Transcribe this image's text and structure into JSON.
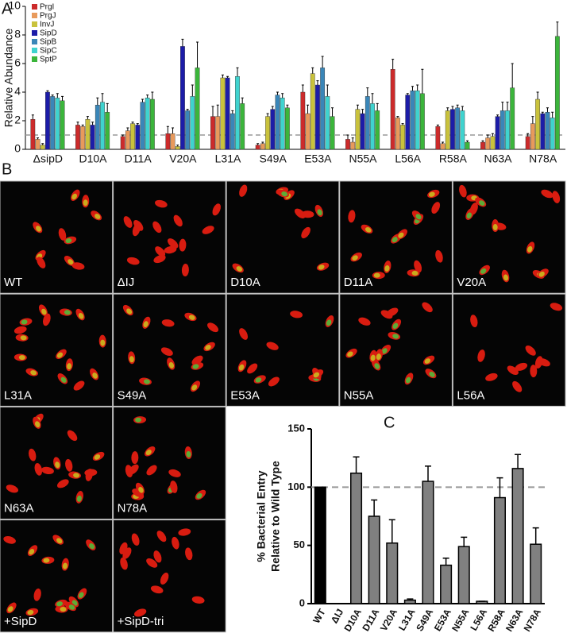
{
  "chart_data": [
    {
      "type": "grouped_bar",
      "panel_label": "A",
      "ylabel": "Relative Abundance",
      "categories": [
        "ΔsipD",
        "D10A",
        "D11A",
        "V20A",
        "L31A",
        "S49A",
        "E53A",
        "N55A",
        "L56A",
        "R58A",
        "N63A",
        "N78A"
      ],
      "ylim": [
        0,
        10
      ],
      "yticks": [
        0,
        2,
        4,
        6,
        8,
        10
      ],
      "reference_line": 1,
      "series": [
        {
          "name": "PrgI",
          "color": "#cc2b2b",
          "values": [
            2.1,
            1.7,
            0.9,
            1.1,
            2.3,
            0.3,
            4.0,
            0.7,
            5.6,
            1.6,
            0.5,
            0.9
          ],
          "errors": [
            0.3,
            0.2,
            0.1,
            0.5,
            0.7,
            0.1,
            0.5,
            0.3,
            0.7,
            0.1,
            0.1,
            0.2
          ]
        },
        {
          "name": "PrgJ",
          "color": "#e89a5c",
          "values": [
            0.7,
            1.6,
            1.3,
            1.1,
            2.3,
            0.4,
            2.5,
            0.5,
            2.2,
            0.4,
            0.8,
            1.8
          ],
          "errors": [
            0.1,
            0.1,
            0.2,
            0.4,
            0.8,
            0.1,
            0.6,
            0.3,
            0.1,
            0.1,
            0.2,
            0.5
          ]
        },
        {
          "name": "InvJ",
          "color": "#c9c23c",
          "values": [
            0.3,
            2.1,
            1.8,
            0.2,
            5.0,
            2.3,
            5.3,
            2.8,
            1.7,
            2.7,
            0.9,
            3.5
          ],
          "errors": [
            0.1,
            0.2,
            0.1,
            0.1,
            0.2,
            0.2,
            0.4,
            0.3,
            0.1,
            0.2,
            0.2,
            0.5
          ]
        },
        {
          "name": "SipD",
          "color": "#1c1ca8",
          "values": [
            4.0,
            1.7,
            1.7,
            7.2,
            5.0,
            2.8,
            4.5,
            2.5,
            3.8,
            2.8,
            2.3,
            2.5
          ],
          "errors": [
            0.1,
            0.2,
            0.1,
            0.5,
            0.1,
            0.2,
            0.3,
            0.3,
            0.1,
            0.2,
            0.1,
            0.1
          ]
        },
        {
          "name": "SipB",
          "color": "#3a86b8",
          "values": [
            3.7,
            3.1,
            3.3,
            2.7,
            2.5,
            3.8,
            5.7,
            3.7,
            4.1,
            2.9,
            2.7,
            2.6
          ],
          "errors": [
            0.1,
            0.5,
            0.2,
            0.1,
            0.2,
            0.2,
            0.8,
            0.6,
            0.3,
            0.2,
            0.6,
            0.3
          ]
        },
        {
          "name": "SipC",
          "color": "#3fd3cf",
          "values": [
            3.6,
            3.3,
            3.6,
            3.7,
            5.1,
            3.6,
            3.7,
            3.2,
            4.1,
            2.7,
            2.7,
            2.2
          ],
          "errors": [
            0.3,
            0.6,
            0.2,
            0.8,
            0.6,
            0.3,
            0.8,
            0.7,
            0.4,
            0.3,
            0.6,
            0.4
          ]
        },
        {
          "name": "SptP",
          "color": "#3bb53b",
          "values": [
            3.4,
            2.6,
            3.5,
            5.7,
            3.2,
            2.9,
            2.3,
            2.7,
            3.9,
            0.5,
            4.3,
            7.9
          ],
          "errors": [
            0.3,
            0.6,
            0.5,
            1.8,
            0.4,
            0.2,
            0.6,
            0.5,
            1.7,
            0.1,
            1.7,
            1.0
          ]
        }
      ]
    },
    {
      "type": "bar",
      "panel_label": "C",
      "ylabel": [
        "% Bacterial Entry",
        "Relative to Wild Type"
      ],
      "categories": [
        "WT",
        "ΔIJ",
        "D10A",
        "D11A",
        "V20A",
        "L31A",
        "S49A",
        "E53A",
        "N55A",
        "L56A",
        "R58A",
        "N63A",
        "N78A"
      ],
      "values": [
        100,
        0,
        112,
        75,
        52,
        3,
        105,
        33,
        49,
        2,
        91,
        116,
        51
      ],
      "errors": [
        0,
        0,
        14,
        14,
        20,
        1,
        13,
        6,
        8,
        0,
        17,
        12,
        14
      ],
      "colors": [
        "#000000",
        "#808080",
        "#808080",
        "#808080",
        "#808080",
        "#808080",
        "#808080",
        "#808080",
        "#808080",
        "#808080",
        "#808080",
        "#808080",
        "#808080"
      ],
      "ylim": [
        0,
        150
      ],
      "yticks": [
        0,
        50,
        100,
        150
      ],
      "reference_line": 100
    }
  ],
  "micrographs": {
    "panel_label": "B",
    "labels": [
      "WT",
      "ΔIJ",
      "D10A",
      "D11A",
      "V20A",
      "L31A",
      "S49A",
      "E53A",
      "N55A",
      "L56A",
      "N63A",
      "N78A",
      "+SipD",
      "+SipD-tri"
    ]
  }
}
